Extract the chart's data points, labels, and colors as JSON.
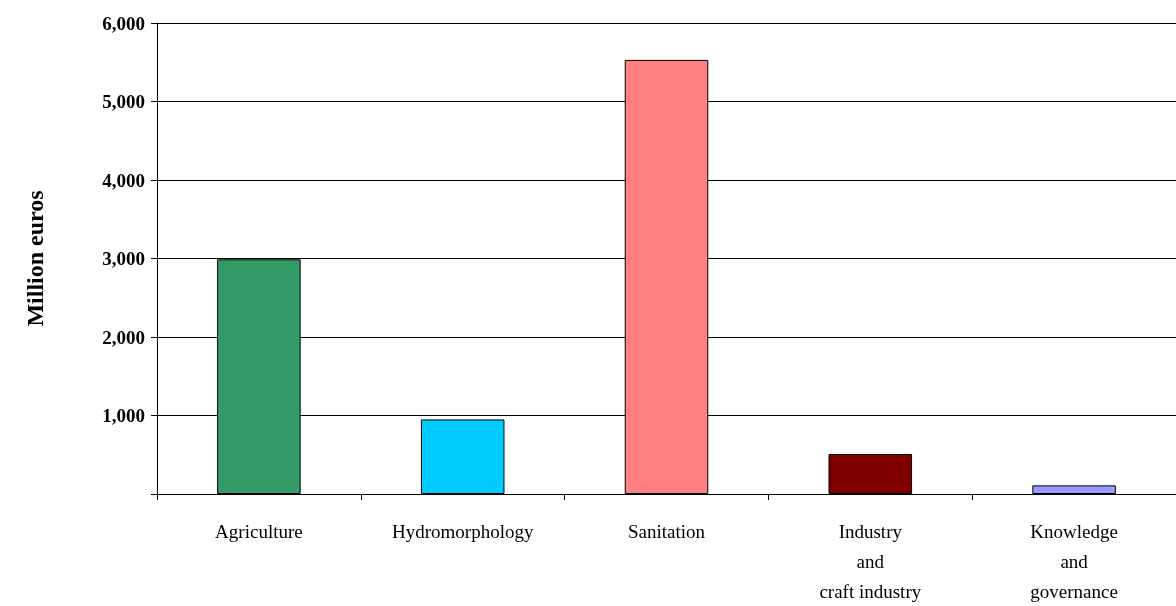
{
  "chart_data": {
    "type": "bar",
    "ylabel": "Million euros",
    "categories": [
      "Agriculture",
      "Hydromorphology",
      "Sanitation",
      "Industry\nand\ncraft industry",
      "Knowledge\nand\ngovernance"
    ],
    "values": [
      2990,
      950,
      5530,
      510,
      110
    ],
    "colors": [
      "#339966",
      "#00ccff",
      "#ff8080",
      "#800000",
      "#9999ff"
    ],
    "ylim": [
      0,
      6000
    ],
    "yticks": [
      {
        "value": 0,
        "label": null
      },
      {
        "value": 1000,
        "label": "1,000"
      },
      {
        "value": 2000,
        "label": "2,000"
      },
      {
        "value": 3000,
        "label": "3,000"
      },
      {
        "value": 4000,
        "label": "4,000"
      },
      {
        "value": 5000,
        "label": "5,000"
      },
      {
        "value": 6000,
        "label": "6,000"
      }
    ],
    "grid": "y"
  }
}
